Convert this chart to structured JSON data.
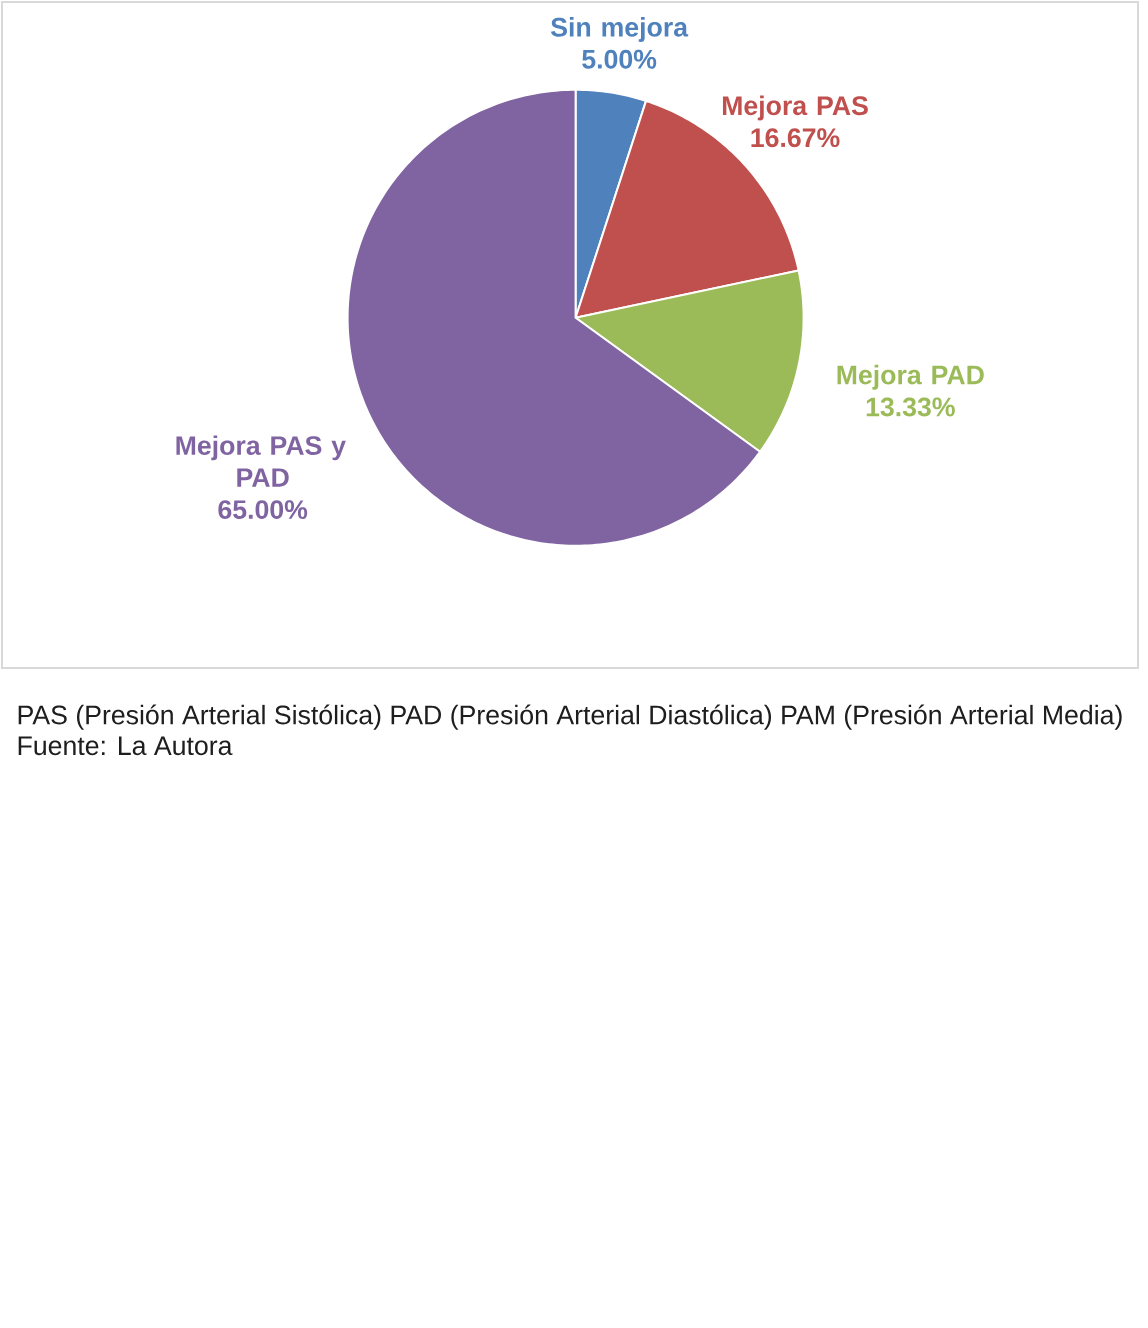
{
  "chart_data": {
    "type": "pie",
    "categories": [
      "Sin mejora",
      "Mejora PAS",
      "Mejora PAD",
      "Mejora PAS y PAD"
    ],
    "values": [
      5,
      16.67,
      13.33,
      65
    ],
    "colors": [
      "#4f81bd",
      "#c0504d",
      "#9bbb59",
      "#8064a2"
    ],
    "value_labels": [
      "5.00%",
      "16.67%",
      "13.33%",
      "65.00%"
    ],
    "annotations": [
      "PAS (Presión Arterial Sistólica) PAD (Presión Arterial Diastólica) PAM (Presión Arterial Media)",
      "Fuente: La Autora"
    ]
  }
}
